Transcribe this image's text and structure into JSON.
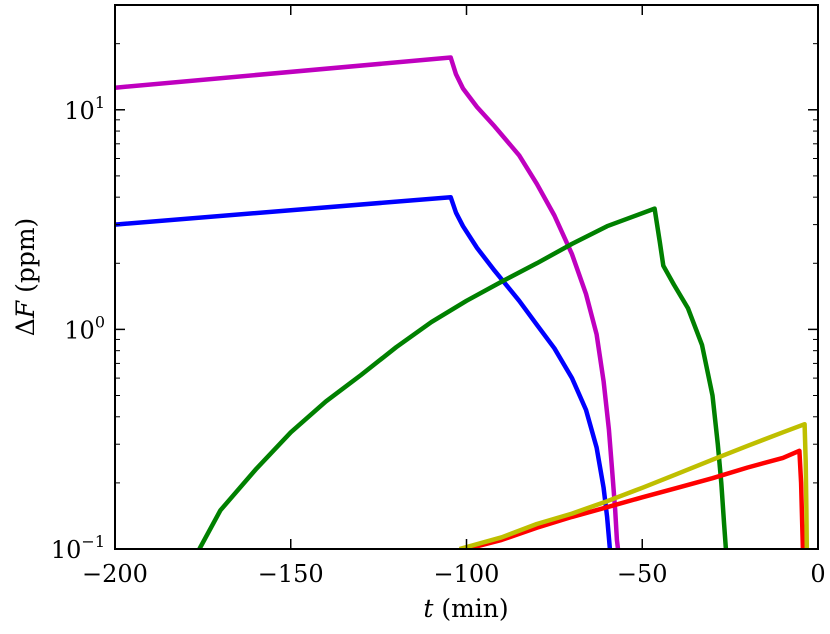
{
  "chart_data": {
    "type": "line",
    "xlabel_var": "t",
    "xlabel_unit": "(min)",
    "ylabel_prefix": "Δ",
    "ylabel_var": "F",
    "ylabel_unit": "(ppm)",
    "xlim": [
      -200,
      0
    ],
    "ylim": [
      0.1,
      30
    ],
    "yscale": "log",
    "grid": false,
    "x_ticks": [
      {
        "value": -200,
        "label": "−200"
      },
      {
        "value": -150,
        "label": "−150"
      },
      {
        "value": -100,
        "label": "−100"
      },
      {
        "value": -50,
        "label": "−50"
      },
      {
        "value": 0,
        "label": "0"
      }
    ],
    "y_ticks": [
      {
        "value": 0.1,
        "base": "10",
        "exp": "−1"
      },
      {
        "value": 1,
        "base": "10",
        "exp": "0"
      },
      {
        "value": 10,
        "base": "10",
        "exp": "1"
      }
    ],
    "series": [
      {
        "color": "#bf00bf",
        "points": [
          [
            -200,
            12.6
          ],
          [
            -104.5,
            17.3
          ],
          [
            -103,
            14.5
          ],
          [
            -101,
            12.5
          ],
          [
            -97,
            10.3
          ],
          [
            -92,
            8.4
          ],
          [
            -85,
            6.2
          ],
          [
            -80,
            4.6
          ],
          [
            -75,
            3.3
          ],
          [
            -70,
            2.2
          ],
          [
            -66,
            1.45
          ],
          [
            -63,
            0.95
          ],
          [
            -61,
            0.58
          ],
          [
            -59.5,
            0.35
          ],
          [
            -58.5,
            0.22
          ],
          [
            -57.7,
            0.15
          ],
          [
            -57.2,
            0.11
          ],
          [
            -56.9,
            0.1
          ]
        ]
      },
      {
        "color": "#0000ff",
        "points": [
          [
            -200,
            3.0
          ],
          [
            -104.5,
            4.0
          ],
          [
            -103,
            3.4
          ],
          [
            -101,
            2.95
          ],
          [
            -97,
            2.35
          ],
          [
            -92,
            1.85
          ],
          [
            -85,
            1.35
          ],
          [
            -80,
            1.05
          ],
          [
            -75,
            0.82
          ],
          [
            -70,
            0.6
          ],
          [
            -66,
            0.43
          ],
          [
            -63,
            0.29
          ],
          [
            -61,
            0.19
          ],
          [
            -60,
            0.14
          ],
          [
            -59.2,
            0.1
          ]
        ]
      },
      {
        "color": "#008000",
        "points": [
          [
            -176,
            0.1
          ],
          [
            -170,
            0.15
          ],
          [
            -160,
            0.23
          ],
          [
            -150,
            0.34
          ],
          [
            -140,
            0.47
          ],
          [
            -130,
            0.62
          ],
          [
            -120,
            0.83
          ],
          [
            -110,
            1.08
          ],
          [
            -100,
            1.35
          ],
          [
            -90,
            1.65
          ],
          [
            -80,
            2.0
          ],
          [
            -70,
            2.45
          ],
          [
            -60,
            2.95
          ],
          [
            -46.5,
            3.55
          ],
          [
            -45,
            2.5
          ],
          [
            -44,
            1.95
          ],
          [
            -41,
            1.6
          ],
          [
            -37,
            1.25
          ],
          [
            -33,
            0.85
          ],
          [
            -30,
            0.5
          ],
          [
            -28.5,
            0.3
          ],
          [
            -27.5,
            0.2
          ],
          [
            -26.7,
            0.13
          ],
          [
            -26.2,
            0.1
          ]
        ]
      },
      {
        "color": "#ff0000",
        "points": [
          [
            -100,
            0.1
          ],
          [
            -90,
            0.11
          ],
          [
            -80,
            0.125
          ],
          [
            -70,
            0.14
          ],
          [
            -60,
            0.155
          ],
          [
            -50,
            0.172
          ],
          [
            -40,
            0.19
          ],
          [
            -30,
            0.21
          ],
          [
            -20,
            0.235
          ],
          [
            -10,
            0.26
          ],
          [
            -5.3,
            0.28
          ],
          [
            -4.8,
            0.2
          ],
          [
            -4.5,
            0.13
          ],
          [
            -4.3,
            0.1
          ]
        ]
      },
      {
        "color": "#bfbf00",
        "points": [
          [
            -102,
            0.1
          ],
          [
            -90,
            0.113
          ],
          [
            -80,
            0.13
          ],
          [
            -70,
            0.145
          ],
          [
            -60,
            0.165
          ],
          [
            -50,
            0.19
          ],
          [
            -40,
            0.22
          ],
          [
            -30,
            0.255
          ],
          [
            -20,
            0.295
          ],
          [
            -10,
            0.34
          ],
          [
            -3.8,
            0.37
          ],
          [
            -3.5,
            0.25
          ],
          [
            -3.3,
            0.15
          ],
          [
            -3.2,
            0.1
          ]
        ]
      }
    ]
  }
}
